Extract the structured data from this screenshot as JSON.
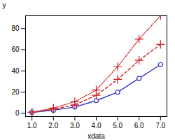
{
  "chart_data": {
    "type": "line",
    "x": [
      1,
      2,
      3,
      4,
      5,
      6,
      7
    ],
    "series": [
      {
        "color": "#3333cc",
        "values": [
          1,
          3,
          6,
          12,
          20,
          33,
          46
        ],
        "marker": "circle",
        "line_style": "solid"
      },
      {
        "color": "#cc2222",
        "values": [
          1,
          4,
          8,
          17,
          32,
          50,
          65
        ],
        "marker": "plus",
        "line_style": "dashed"
      },
      {
        "color": "#cc2222",
        "values": [
          1,
          5,
          11,
          22,
          44,
          70,
          92
        ],
        "marker": "plus",
        "line_style": "dotted"
      }
    ],
    "xlabel": "xdata",
    "ylabel": "y",
    "xlim": [
      0.7,
      7.3
    ],
    "ylim": [
      -3,
      92
    ],
    "xticks": [
      1,
      2,
      3,
      4,
      5,
      6,
      7
    ],
    "yticks": [
      0,
      20,
      40,
      60,
      80
    ],
    "grid": false
  }
}
